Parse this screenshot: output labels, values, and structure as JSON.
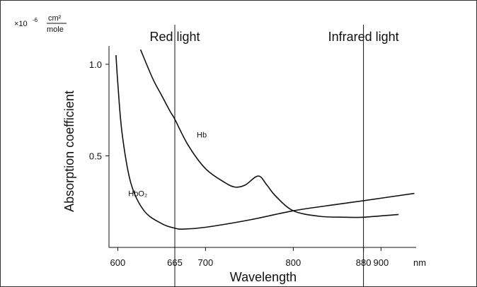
{
  "chart_data": {
    "type": "line",
    "xlabel": "Wavelength",
    "ylabel": "Absorption coefficient",
    "x_unit": "nm",
    "y_multiplier": "×10",
    "y_multiplier_exp": "-6",
    "y_unit_numerator": "cm²",
    "y_unit_denominator": "mole",
    "xlim": [
      590,
      940
    ],
    "ylim": [
      0,
      1.1
    ],
    "x_ticks": [
      {
        "value": 600,
        "label": "600"
      },
      {
        "value": 665,
        "label": "665"
      },
      {
        "value": 700,
        "label": "700"
      },
      {
        "value": 800,
        "label": "800"
      },
      {
        "value": 880,
        "label": "880"
      },
      {
        "value": 900,
        "label": "900"
      }
    ],
    "y_ticks": [
      {
        "value": 0.5,
        "label": "0.5"
      },
      {
        "value": 1.0,
        "label": "1.0"
      }
    ],
    "reference_lines": [
      {
        "x": 665,
        "label": "Red light"
      },
      {
        "x": 880,
        "label": "Infrared light"
      }
    ],
    "series": [
      {
        "name": "Hb",
        "x": [
          626,
          640,
          650,
          660,
          665,
          680,
          700,
          720,
          733,
          745,
          760,
          770,
          780,
          800,
          830,
          860,
          880,
          920
        ],
        "y": [
          1.08,
          0.92,
          0.83,
          0.74,
          0.7,
          0.56,
          0.43,
          0.36,
          0.33,
          0.34,
          0.39,
          0.34,
          0.28,
          0.2,
          0.17,
          0.165,
          0.165,
          0.18
        ]
      },
      {
        "name": "HbO₂",
        "x": [
          598,
          600,
          605,
          615,
          630,
          650,
          665,
          675,
          700,
          750,
          800,
          850,
          880,
          938
        ],
        "y": [
          1.05,
          0.9,
          0.62,
          0.35,
          0.2,
          0.13,
          0.105,
          0.1,
          0.11,
          0.15,
          0.2,
          0.235,
          0.255,
          0.295
        ]
      }
    ]
  }
}
